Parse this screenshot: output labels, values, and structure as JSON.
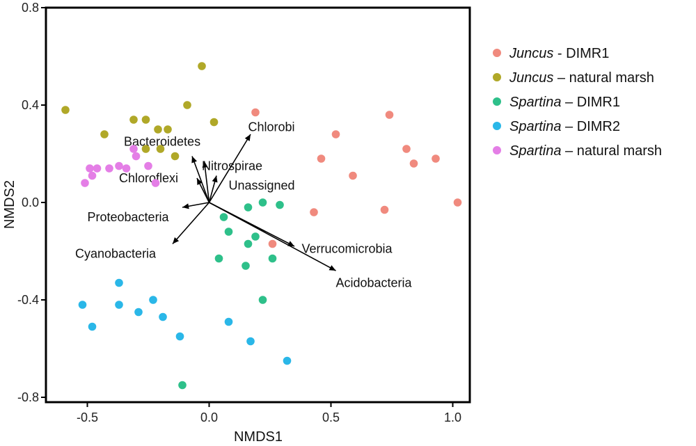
{
  "chart_data": {
    "type": "scatter",
    "title": "",
    "xlabel": "NMDS1",
    "ylabel": "NMDS2",
    "xlim": [
      -0.67,
      1.07
    ],
    "ylim": [
      -0.82,
      0.8
    ],
    "x_ticks": [
      -0.5,
      0.0,
      0.5,
      1.0
    ],
    "x_tick_labels": [
      "-0.5",
      "0.0",
      "0.5",
      "1.0"
    ],
    "y_ticks": [
      0.8,
      0.4,
      0.0,
      -0.4,
      -0.8
    ],
    "y_tick_labels": [
      "0.8",
      "0.4",
      "0.0",
      "-0.4",
      "-0.8"
    ],
    "grid": false,
    "legend_position": "right",
    "series": [
      {
        "genus": "Juncus",
        "suffix": " - DIMR1",
        "color": "#f08a7e",
        "points": [
          [
            0.19,
            0.37
          ],
          [
            0.52,
            0.28
          ],
          [
            0.74,
            0.36
          ],
          [
            0.81,
            0.22
          ],
          [
            0.93,
            0.18
          ],
          [
            0.84,
            0.16
          ],
          [
            0.46,
            0.18
          ],
          [
            0.59,
            0.11
          ],
          [
            0.43,
            -0.04
          ],
          [
            0.72,
            -0.03
          ],
          [
            1.02,
            0.0
          ],
          [
            0.26,
            -0.17
          ]
        ]
      },
      {
        "genus": "Juncus",
        "suffix": " – natural marsh",
        "color": "#b0a828",
        "points": [
          [
            -0.59,
            0.38
          ],
          [
            -0.03,
            0.56
          ],
          [
            -0.31,
            0.34
          ],
          [
            -0.26,
            0.34
          ],
          [
            -0.09,
            0.4
          ],
          [
            0.02,
            0.33
          ],
          [
            -0.43,
            0.28
          ],
          [
            -0.21,
            0.3
          ],
          [
            -0.17,
            0.3
          ],
          [
            -0.26,
            0.22
          ],
          [
            -0.2,
            0.22
          ],
          [
            -0.14,
            0.19
          ]
        ]
      },
      {
        "genus": "Spartina",
        "suffix": " – DIMR1",
        "color": "#2ec08a",
        "points": [
          [
            0.22,
            0.0
          ],
          [
            0.29,
            -0.01
          ],
          [
            0.16,
            -0.02
          ],
          [
            0.06,
            -0.06
          ],
          [
            0.08,
            -0.12
          ],
          [
            0.19,
            -0.14
          ],
          [
            0.16,
            -0.17
          ],
          [
            0.04,
            -0.23
          ],
          [
            0.15,
            -0.26
          ],
          [
            0.26,
            -0.23
          ],
          [
            0.22,
            -0.4
          ],
          [
            -0.11,
            -0.75
          ]
        ]
      },
      {
        "genus": "Spartina",
        "suffix": " – DIMR2",
        "color": "#2ab7e8",
        "points": [
          [
            -0.52,
            -0.42
          ],
          [
            -0.37,
            -0.33
          ],
          [
            -0.37,
            -0.42
          ],
          [
            -0.23,
            -0.4
          ],
          [
            -0.29,
            -0.45
          ],
          [
            -0.19,
            -0.47
          ],
          [
            -0.48,
            -0.51
          ],
          [
            -0.12,
            -0.55
          ],
          [
            0.08,
            -0.49
          ],
          [
            0.17,
            -0.57
          ],
          [
            0.32,
            -0.65
          ]
        ]
      },
      {
        "genus": "Spartina",
        "suffix": " – natural marsh",
        "color": "#e47ee6",
        "points": [
          [
            -0.31,
            0.22
          ],
          [
            -0.3,
            0.19
          ],
          [
            -0.49,
            0.14
          ],
          [
            -0.46,
            0.14
          ],
          [
            -0.41,
            0.14
          ],
          [
            -0.37,
            0.15
          ],
          [
            -0.34,
            0.14
          ],
          [
            -0.25,
            0.15
          ],
          [
            -0.48,
            0.11
          ],
          [
            -0.51,
            0.08
          ],
          [
            -0.22,
            0.08
          ]
        ]
      }
    ],
    "vectors": [
      {
        "label": "Chlorobi",
        "end": [
          0.17,
          0.28
        ],
        "label_pos": [
          0.16,
          0.31
        ]
      },
      {
        "label": "Bacteroidetes",
        "end": [
          -0.07,
          0.19
        ],
        "label_pos": [
          -0.35,
          0.25
        ]
      },
      {
        "label": "Nitrospirae",
        "end": [
          -0.02,
          0.17
        ],
        "label_pos": [
          -0.03,
          0.15
        ]
      },
      {
        "label": "Chloroflexi",
        "end": [
          -0.05,
          0.1
        ],
        "label_pos": [
          -0.37,
          0.1
        ]
      },
      {
        "label": "Unassigned",
        "end": [
          0.03,
          0.11
        ],
        "label_pos": [
          0.08,
          0.07
        ]
      },
      {
        "label": "Proteobacteria",
        "end": [
          -0.11,
          -0.02
        ],
        "label_pos": [
          -0.5,
          -0.06
        ]
      },
      {
        "label": "Cyanobacteria",
        "end": [
          -0.15,
          -0.17
        ],
        "label_pos": [
          -0.55,
          -0.21
        ]
      },
      {
        "label": "Verrucomicrobia",
        "end": [
          0.35,
          -0.18
        ],
        "label_pos": [
          0.38,
          -0.19
        ]
      },
      {
        "label": "Acidobacteria",
        "end": [
          0.52,
          -0.28
        ],
        "label_pos": [
          0.52,
          -0.33
        ]
      }
    ]
  }
}
